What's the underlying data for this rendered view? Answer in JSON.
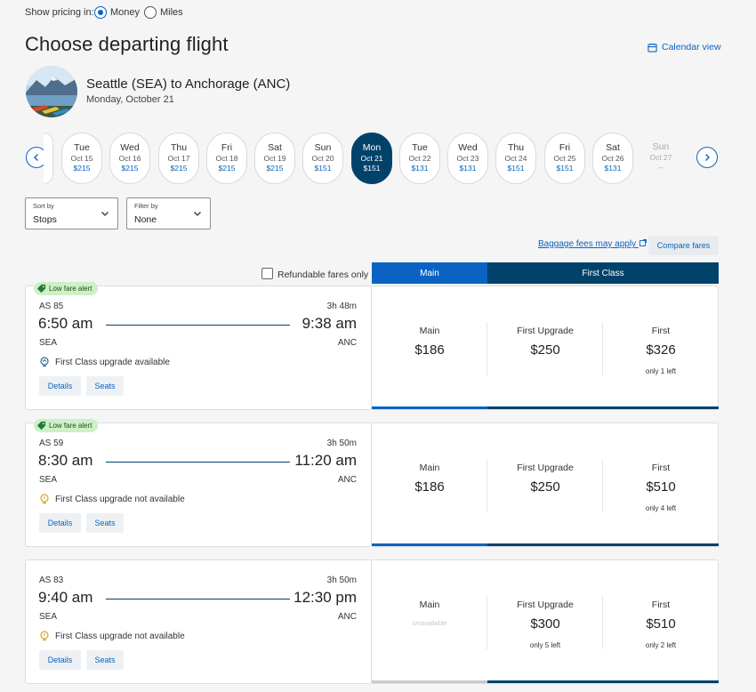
{
  "pricing": {
    "label": "Show pricing in:",
    "options": [
      {
        "label": "Money",
        "selected": true
      },
      {
        "label": "Miles",
        "selected": false
      }
    ]
  },
  "page_title": "Choose departing flight",
  "calendar_view": "Calendar view",
  "route": {
    "title": "Seattle (SEA) to Anchorage (ANC)",
    "date": "Monday, October 21"
  },
  "dates": [
    {
      "dow": "Tue",
      "date": "Oct 15",
      "price": "$215"
    },
    {
      "dow": "Wed",
      "date": "Oct 16",
      "price": "$215"
    },
    {
      "dow": "Thu",
      "date": "Oct 17",
      "price": "$215"
    },
    {
      "dow": "Fri",
      "date": "Oct 18",
      "price": "$215"
    },
    {
      "dow": "Sat",
      "date": "Oct 19",
      "price": "$215"
    },
    {
      "dow": "Sun",
      "date": "Oct 20",
      "price": "$151"
    },
    {
      "dow": "Mon",
      "date": "Oct 21",
      "price": "$151",
      "selected": true
    },
    {
      "dow": "Tue",
      "date": "Oct 22",
      "price": "$131"
    },
    {
      "dow": "Wed",
      "date": "Oct 23",
      "price": "$131"
    },
    {
      "dow": "Thu",
      "date": "Oct 24",
      "price": "$151"
    },
    {
      "dow": "Fri",
      "date": "Oct 25",
      "price": "$151"
    },
    {
      "dow": "Sat",
      "date": "Oct 26",
      "price": "$131"
    },
    {
      "dow": "Sun",
      "date": "Oct 27",
      "price": "--",
      "disabled": true
    }
  ],
  "sort": {
    "label": "Sort by",
    "value": "Stops"
  },
  "filter": {
    "label": "Filter by",
    "value": "None"
  },
  "baggage_link": "Baggage fees may apply",
  "compare_fares": "Compare fares",
  "refundable": {
    "label": "Refundable fares only",
    "checked": false
  },
  "tabs": {
    "main": "Main",
    "first": "First Class"
  },
  "flights": [
    {
      "badge": "Low fare alert",
      "number": "AS 85",
      "duration": "3h 48m",
      "depart": "6:50 am",
      "arrive": "9:38 am",
      "from": "SEA",
      "to": "ANC",
      "upgrade": "First Class upgrade available",
      "upgrade_available": true,
      "details": "Details",
      "seats": "Seats",
      "fares": [
        {
          "name": "Main",
          "price": "$186",
          "note": ""
        },
        {
          "name": "First Upgrade",
          "price": "$250",
          "note": ""
        },
        {
          "name": "First",
          "price": "$326",
          "note": "only 1 left"
        }
      ]
    },
    {
      "badge": "Low fare alert",
      "number": "AS 59",
      "duration": "3h 50m",
      "depart": "8:30 am",
      "arrive": "11:20 am",
      "from": "SEA",
      "to": "ANC",
      "upgrade": "First Class upgrade not available",
      "upgrade_available": false,
      "details": "Details",
      "seats": "Seats",
      "fares": [
        {
          "name": "Main",
          "price": "$186",
          "note": ""
        },
        {
          "name": "First Upgrade",
          "price": "$250",
          "note": ""
        },
        {
          "name": "First",
          "price": "$510",
          "note": "only 4 left"
        }
      ]
    },
    {
      "badge": "",
      "number": "AS 83",
      "duration": "3h 50m",
      "depart": "9:40 am",
      "arrive": "12:30 pm",
      "from": "SEA",
      "to": "ANC",
      "upgrade": "First Class upgrade not available",
      "upgrade_available": false,
      "details": "Details",
      "seats": "Seats",
      "fares": [
        {
          "name": "Main",
          "price": "",
          "note": "",
          "unavailable": "Unavailable"
        },
        {
          "name": "First Upgrade",
          "price": "$300",
          "note": "only 5 left"
        },
        {
          "name": "First",
          "price": "$510",
          "note": "only 2 left"
        }
      ]
    }
  ],
  "colors": {
    "accent": "#0a63c2",
    "navy": "#01426a",
    "badge": "#cdf0c4"
  }
}
